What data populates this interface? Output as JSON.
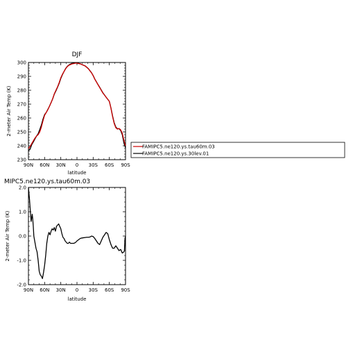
{
  "chart_data": [
    {
      "type": "line",
      "title": "DJF",
      "xlabel": "latitude",
      "ylabel": "2-meter Air Temp (K)",
      "xlim": [
        90,
        -90
      ],
      "ylim": [
        230,
        300
      ],
      "xticks": [
        90,
        60,
        30,
        0,
        -30,
        -60,
        -90
      ],
      "xtick_labels": [
        "90N",
        "60N",
        "30N",
        "0",
        "30S",
        "60S",
        "90S"
      ],
      "yticks": [
        230,
        240,
        250,
        260,
        270,
        280,
        290,
        300
      ],
      "ytick_labels": [
        "230",
        "240",
        "250",
        "260",
        "270",
        "280",
        "290",
        "300"
      ],
      "series": [
        {
          "name": "FAMIPC5.ne120.ys.tau60m.03",
          "color": "#cc0000",
          "x": [
            90,
            87,
            84,
            81,
            78,
            75,
            72,
            69,
            66,
            63,
            60,
            57,
            54,
            51,
            48,
            45,
            42,
            39,
            36,
            33,
            30,
            27,
            24,
            21,
            18,
            15,
            12,
            9,
            6,
            3,
            0,
            -3,
            -6,
            -9,
            -12,
            -15,
            -18,
            -21,
            -24,
            -27,
            -30,
            -33,
            -36,
            -39,
            -42,
            -45,
            -48,
            -51,
            -54,
            -57,
            -60,
            -63,
            -66,
            -69,
            -72,
            -75,
            -78,
            -81,
            -84,
            -87,
            -90
          ],
          "y": [
            238,
            239.5,
            241.5,
            243.5,
            245.5,
            247,
            248,
            250,
            253.5,
            258,
            262,
            264,
            266,
            268.5,
            271,
            274,
            277.5,
            280,
            282.5,
            285.5,
            289,
            291.5,
            293.5,
            295.5,
            297,
            298,
            298.5,
            299,
            299.2,
            299.5,
            299.5,
            299.2,
            299,
            298.5,
            298,
            297.5,
            296.5,
            295.5,
            294,
            292.5,
            290.5,
            288,
            286,
            284,
            282,
            280,
            278,
            276.5,
            275,
            273.5,
            272,
            267,
            261,
            256,
            253,
            252,
            252.5,
            251.5,
            249,
            244,
            240
          ]
        },
        {
          "name": "FAMIPC5.ne120.ys.30lev.01",
          "color": "#000000",
          "x": [
            90,
            87,
            84,
            81,
            78,
            75,
            72,
            69,
            66,
            63,
            60,
            57,
            54,
            51,
            48,
            45,
            42,
            39,
            36,
            33,
            30,
            27,
            24,
            21,
            18,
            15,
            12,
            9,
            6,
            3,
            0,
            -3,
            -6,
            -9,
            -12,
            -15,
            -18,
            -21,
            -24,
            -27,
            -30,
            -33,
            -36,
            -39,
            -42,
            -45,
            -48,
            -51,
            -54,
            -57,
            -60,
            -63,
            -66,
            -69,
            -72,
            -75,
            -78,
            -81,
            -84,
            -87,
            -90
          ],
          "y": [
            236.5,
            237.5,
            240.7,
            242.7,
            244.9,
            247,
            248.7,
            251.7,
            255,
            259.2,
            262.5,
            264,
            266.2,
            268.5,
            271.2,
            273.8,
            277.2,
            279.6,
            282.2,
            285,
            288.5,
            291.2,
            293.5,
            295.7,
            297.2,
            298.2,
            298.9,
            299.3,
            299.5,
            299.8,
            299.6,
            299.4,
            299.1,
            298.6,
            298.1,
            297.6,
            296.6,
            295.6,
            294.1,
            292.6,
            290.6,
            288.1,
            286.1,
            284.1,
            282.2,
            280.2,
            278.2,
            276.6,
            275,
            273.5,
            272,
            267.2,
            261.5,
            256.6,
            253.5,
            252.3,
            252.3,
            251,
            248,
            242,
            238.5
          ]
        }
      ]
    },
    {
      "type": "line",
      "title": "MIPC5.ne120.ys.tau60m.03",
      "xlabel": "latitude",
      "ylabel": "2-meter Air Temp (K)",
      "xlim": [
        90,
        -90
      ],
      "ylim": [
        -2.0,
        2.0
      ],
      "xticks": [
        90,
        60,
        30,
        0,
        -30,
        -60,
        -90
      ],
      "xtick_labels": [
        "90N",
        "60N",
        "30N",
        "0",
        "30S",
        "60S",
        "90S"
      ],
      "yticks": [
        -2.0,
        -1.0,
        0.0,
        1.0,
        2.0
      ],
      "ytick_labels": [
        "-2.0",
        "-1.0",
        "0.0",
        "1.0",
        "2.0"
      ],
      "series": [
        {
          "color": "#000000",
          "x": [
            90,
            88,
            86,
            85,
            84,
            83,
            82,
            81,
            80,
            78,
            76,
            74,
            72,
            70,
            68,
            66,
            64,
            62,
            60,
            58,
            56,
            54,
            52,
            50,
            48,
            46,
            44,
            42,
            40,
            38,
            36,
            34,
            32,
            30,
            28,
            26,
            24,
            22,
            20,
            18,
            16,
            14,
            12,
            10,
            8,
            6,
            4,
            2,
            0,
            -3,
            -6,
            -9,
            -12,
            -15,
            -18,
            -21,
            -24,
            -27,
            -30,
            -33,
            -36,
            -39,
            -42,
            -45,
            -48,
            -51,
            -54,
            -57,
            -60,
            -63,
            -66,
            -69,
            -72,
            -75,
            -78,
            -81,
            -84,
            -87,
            -88,
            -89,
            -90
          ],
          "y": [
            2.0,
            1.5,
            0.9,
            0.6,
            0.75,
            0.9,
            0.7,
            0.4,
            0.0,
            -0.25,
            -0.5,
            -0.65,
            -1.0,
            -1.45,
            -1.6,
            -1.65,
            -1.75,
            -1.5,
            -1.2,
            -0.8,
            -0.3,
            0.0,
            0.15,
            0.05,
            0.2,
            0.3,
            0.25,
            0.35,
            0.2,
            0.4,
            0.45,
            0.5,
            0.4,
            0.3,
            0.1,
            -0.05,
            -0.1,
            -0.2,
            -0.25,
            -0.3,
            -0.3,
            -0.25,
            -0.3,
            -0.3,
            -0.3,
            -0.3,
            -0.28,
            -0.25,
            -0.2,
            -0.15,
            -0.1,
            -0.08,
            -0.07,
            -0.06,
            -0.05,
            -0.05,
            -0.04,
            0.0,
            -0.02,
            -0.1,
            -0.2,
            -0.3,
            -0.35,
            -0.2,
            -0.05,
            0.05,
            0.15,
            0.1,
            -0.15,
            -0.35,
            -0.5,
            -0.5,
            -0.4,
            -0.5,
            -0.6,
            -0.55,
            -0.7,
            -0.65,
            -0.6,
            -0.1,
            0.0
          ]
        }
      ]
    }
  ]
}
